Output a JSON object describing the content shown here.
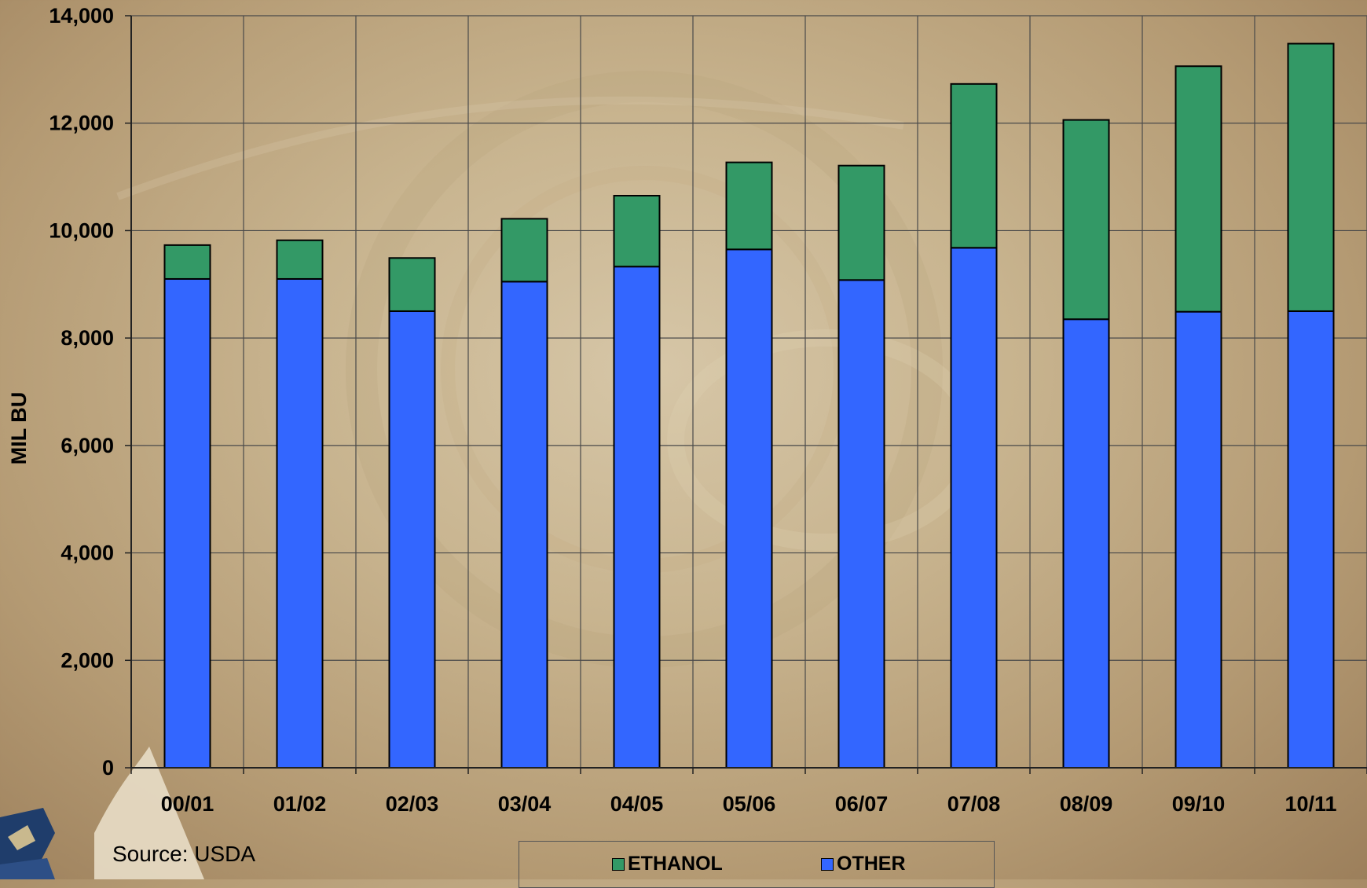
{
  "chart_data": {
    "type": "bar",
    "stacked": true,
    "categories": [
      "00/01",
      "01/02",
      "02/03",
      "03/04",
      "04/05",
      "05/06",
      "06/07",
      "07/08",
      "08/09",
      "09/10",
      "10/11"
    ],
    "series": [
      {
        "name": "OTHER",
        "color": "#3366ff",
        "values": [
          9100,
          9100,
          8500,
          9050,
          9330,
          9650,
          9080,
          9680,
          8350,
          8490,
          8500
        ]
      },
      {
        "name": "ETHANOL",
        "color": "#339966",
        "values": [
          630,
          720,
          990,
          1170,
          1320,
          1620,
          2130,
          3050,
          3710,
          4570,
          4980
        ]
      }
    ],
    "ylabel": "MIL BU",
    "xlabel": "",
    "ylim": [
      0,
      14000
    ],
    "yticks": [
      "0",
      "2,000",
      "4,000",
      "6,000",
      "8,000",
      "10,000",
      "12,000",
      "14,000"
    ],
    "grid": true,
    "legend_position": "bottom",
    "legend": [
      "ETHANOL",
      "OTHER"
    ],
    "source": "Source: USDA"
  }
}
